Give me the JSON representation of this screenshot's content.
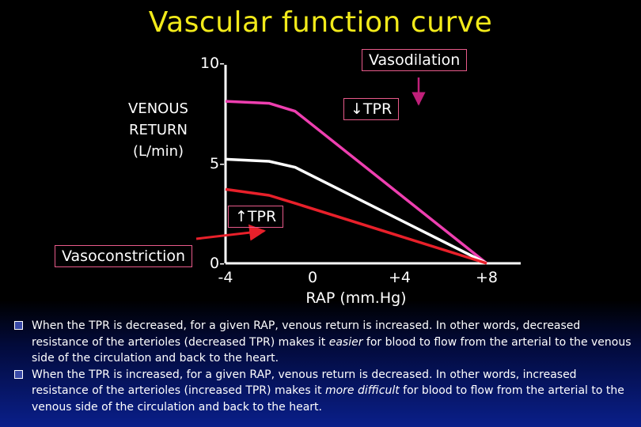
{
  "title": "Vascular function curve",
  "chart_data": {
    "type": "line",
    "xlabel": "RAP (mm.Hg)",
    "ylabel_lines": [
      "VENOUS",
      "RETURN",
      "(L/min)"
    ],
    "x_ticks": [
      {
        "value": -4,
        "label": "-4"
      },
      {
        "value": 0,
        "label": "0"
      },
      {
        "value": 4,
        "label": "+4"
      },
      {
        "value": 8,
        "label": "+8"
      }
    ],
    "y_ticks": [
      {
        "value": 10,
        "label": "10-"
      },
      {
        "value": 5,
        "label": "5-"
      },
      {
        "value": 0,
        "label": "0-"
      }
    ],
    "xlim": [
      -4,
      8
    ],
    "ylim": [
      0,
      10
    ],
    "series": [
      {
        "key": "decreased_tpr",
        "color": "#ee3fb0",
        "points": [
          [
            -4,
            8.1
          ],
          [
            -2,
            8.0
          ],
          [
            -0.8,
            7.6
          ],
          [
            8,
            0
          ]
        ]
      },
      {
        "key": "normal",
        "color": "#ffffff",
        "points": [
          [
            -4,
            5.2
          ],
          [
            -2,
            5.1
          ],
          [
            -0.8,
            4.8
          ],
          [
            8,
            0
          ]
        ]
      },
      {
        "key": "increased_tpr",
        "color": "#e8202a",
        "points": [
          [
            -4,
            3.7
          ],
          [
            -2,
            3.4
          ],
          [
            -0.8,
            3.0
          ],
          [
            8,
            0
          ]
        ]
      }
    ],
    "annotations": {
      "vasodilation": "Vasodilation",
      "decreased_tpr": "↓TPR",
      "increased_tpr": "↑TPR",
      "vasoconstriction": "Vasoconstriction"
    },
    "colors": {
      "axis": "#ffffff",
      "title": "#f2ea1a",
      "annotation_border": "#e85a8a",
      "vasodilation_arrow": "#c0207a",
      "vasoconstriction_arrow": "#e8202a"
    }
  },
  "bullets": [
    {
      "pre": "When the TPR is decreased, for a given RAP, venous return is increased. In other words, decreased resistance of the arterioles (decreased TPR) makes it ",
      "em": "easier",
      "post": " for blood to flow from the arterial to the venous side of the circulation and back to the heart."
    },
    {
      "pre": "When the TPR is increased, for a given RAP, venous return is decreased. In other words, increased resistance of the arterioles (increased TPR) makes it ",
      "em": "more difficult",
      "post": " for blood to flow from the arterial to the venous side of the circulation and back to the heart."
    }
  ]
}
